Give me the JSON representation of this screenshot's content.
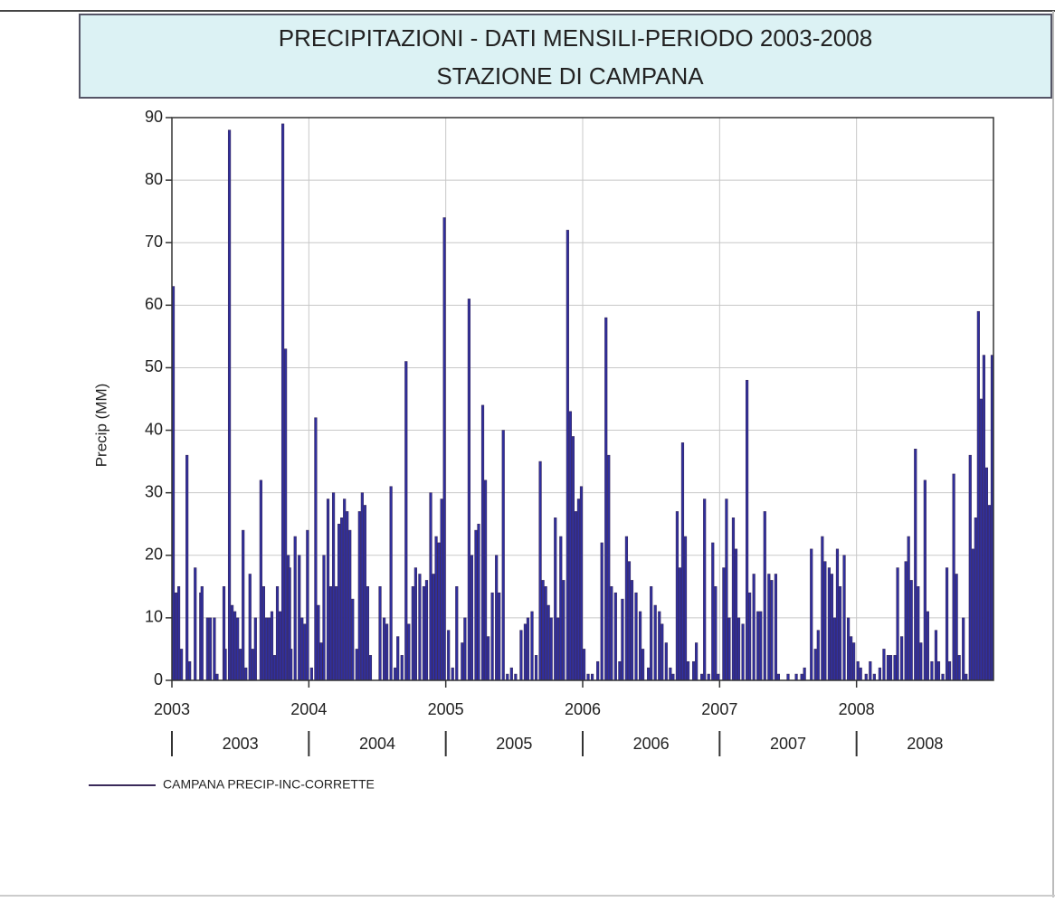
{
  "chart_data": {
    "type": "bar",
    "title": "PRECIPITAZIONI - DATI MENSILI-PERIODO 2003-2008",
    "subtitle": "STAZIONE DI CAMPANA",
    "y_label": "Precip (MM)",
    "xlim": [
      2003,
      2009
    ],
    "xticks": [
      2003,
      2004,
      2005,
      2006,
      2007,
      2008
    ],
    "ylim": [
      0,
      90
    ],
    "yticks": [
      0,
      10,
      20,
      30,
      40,
      50,
      60,
      70,
      80,
      90
    ],
    "grid": true,
    "legend": "bottom-left",
    "series": [
      {
        "name": "CAMPANA  PRECIP-INC-CORRETTE",
        "color": "#2f2fa0",
        "line_color": "#3a2a5a",
        "x": [
          2003.01,
          2003.03,
          2003.05,
          2003.07,
          2003.11,
          2003.13,
          2003.17,
          2003.21,
          2003.22,
          2003.26,
          2003.28,
          2003.31,
          2003.33,
          2003.38,
          2003.39,
          2003.42,
          2003.44,
          2003.46,
          2003.48,
          2003.5,
          2003.52,
          2003.54,
          2003.57,
          2003.59,
          2003.61,
          2003.65,
          2003.67,
          2003.69,
          2003.71,
          2003.73,
          2003.75,
          2003.77,
          2003.79,
          2003.81,
          2003.83,
          2003.85,
          2003.86,
          2003.87,
          2003.9,
          2003.93,
          2003.95,
          2003.97,
          2003.99,
          2004.02,
          2004.05,
          2004.07,
          2004.09,
          2004.11,
          2004.14,
          2004.16,
          2004.18,
          2004.2,
          2004.22,
          2004.24,
          2004.26,
          2004.28,
          2004.3,
          2004.32,
          2004.35,
          2004.37,
          2004.39,
          2004.41,
          2004.43,
          2004.45,
          2004.52,
          2004.55,
          2004.57,
          2004.6,
          2004.63,
          2004.65,
          2004.68,
          2004.71,
          2004.73,
          2004.76,
          2004.78,
          2004.81,
          2004.84,
          2004.86,
          2004.89,
          2004.91,
          2004.93,
          2004.95,
          2004.97,
          2004.99,
          2005.02,
          2005.05,
          2005.08,
          2005.12,
          2005.14,
          2005.17,
          2005.19,
          2005.22,
          2005.24,
          2005.27,
          2005.29,
          2005.31,
          2005.34,
          2005.37,
          2005.39,
          2005.42,
          2005.45,
          2005.48,
          2005.51,
          2005.55,
          2005.58,
          2005.6,
          2005.63,
          2005.66,
          2005.69,
          2005.71,
          2005.73,
          2005.75,
          2005.77,
          2005.8,
          2005.82,
          2005.84,
          2005.86,
          2005.89,
          2005.91,
          2005.93,
          2005.95,
          2005.97,
          2005.99,
          2006.01,
          2006.04,
          2006.07,
          2006.11,
          2006.14,
          2006.17,
          2006.19,
          2006.21,
          2006.24,
          2006.27,
          2006.29,
          2006.32,
          2006.34,
          2006.36,
          2006.39,
          2006.42,
          2006.44,
          2006.48,
          2006.5,
          2006.53,
          2006.56,
          2006.58,
          2006.61,
          2006.64,
          2006.66,
          2006.69,
          2006.71,
          2006.73,
          2006.75,
          2006.77,
          2006.81,
          2006.83,
          2006.87,
          2006.89,
          2006.92,
          2006.95,
          2006.97,
          2006.99,
          2007.03,
          2007.05,
          2007.07,
          2007.1,
          2007.12,
          2007.14,
          2007.17,
          2007.2,
          2007.22,
          2007.25,
          2007.28,
          2007.3,
          2007.33,
          2007.36,
          2007.38,
          2007.41,
          2007.43,
          2007.5,
          2007.56,
          2007.6,
          2007.62,
          2007.67,
          2007.7,
          2007.72,
          2007.75,
          2007.77,
          2007.8,
          2007.82,
          2007.84,
          2007.86,
          2007.88,
          2007.91,
          2007.94,
          2007.96,
          2007.98,
          2008.01,
          2008.03,
          2008.07,
          2008.1,
          2008.13,
          2008.17,
          2008.2,
          2008.23,
          2008.25,
          2008.28,
          2008.3,
          2008.33,
          2008.36,
          2008.38,
          2008.4,
          2008.43,
          2008.45,
          2008.47,
          2008.5,
          2008.52,
          2008.55,
          2008.58,
          2008.6,
          2008.63,
          2008.66,
          2008.68,
          2008.71,
          2008.73,
          2008.75,
          2008.78,
          2008.8,
          2008.83,
          2008.85,
          2008.87,
          2008.89,
          2008.91,
          2008.93,
          2008.95,
          2008.97,
          2008.99
        ],
        "values": [
          63,
          14,
          15,
          5,
          36,
          3,
          18,
          14,
          15,
          10,
          10,
          10,
          1,
          15,
          5,
          88,
          12,
          11,
          10,
          5,
          24,
          2,
          17,
          5,
          10,
          32,
          15,
          10,
          10,
          11,
          4,
          15,
          11,
          89,
          53,
          20,
          18,
          5,
          23,
          20,
          10,
          9,
          24,
          2,
          42,
          12,
          6,
          20,
          29,
          15,
          30,
          15,
          25,
          26,
          29,
          27,
          24,
          13,
          5,
          27,
          30,
          28,
          15,
          4,
          15,
          10,
          9,
          31,
          2,
          7,
          4,
          51,
          9,
          15,
          18,
          17,
          15,
          16,
          30,
          17,
          23,
          22,
          29,
          74,
          8,
          2,
          15,
          6,
          10,
          61,
          20,
          24,
          25,
          44,
          32,
          7,
          14,
          20,
          14,
          40,
          1,
          2,
          1,
          8,
          9,
          10,
          11,
          4,
          35,
          16,
          15,
          12,
          10,
          26,
          10,
          23,
          16,
          72,
          43,
          39,
          27,
          29,
          31,
          5,
          1,
          1,
          3,
          22,
          58,
          36,
          15,
          14,
          3,
          13,
          23,
          19,
          16,
          14,
          11,
          5,
          2,
          15,
          12,
          11,
          9,
          6,
          2,
          1,
          27,
          18,
          38,
          23,
          3,
          3,
          6,
          1,
          29,
          1,
          22,
          15,
          1,
          18,
          29,
          10,
          26,
          21,
          10,
          9,
          48,
          14,
          17,
          11,
          11,
          27,
          17,
          16,
          17,
          1,
          1,
          1,
          1,
          2,
          21,
          5,
          8,
          23,
          19,
          18,
          17,
          10,
          21,
          15,
          20,
          10,
          7,
          6,
          3,
          2,
          1,
          3,
          1,
          2,
          5,
          4,
          4,
          4,
          18,
          7,
          19,
          23,
          16,
          37,
          15,
          6,
          32,
          11,
          3,
          8,
          3,
          1,
          18,
          3,
          33,
          17,
          4,
          10,
          1,
          36,
          21,
          26,
          59,
          45,
          52,
          34,
          28,
          52
        ]
      }
    ]
  }
}
